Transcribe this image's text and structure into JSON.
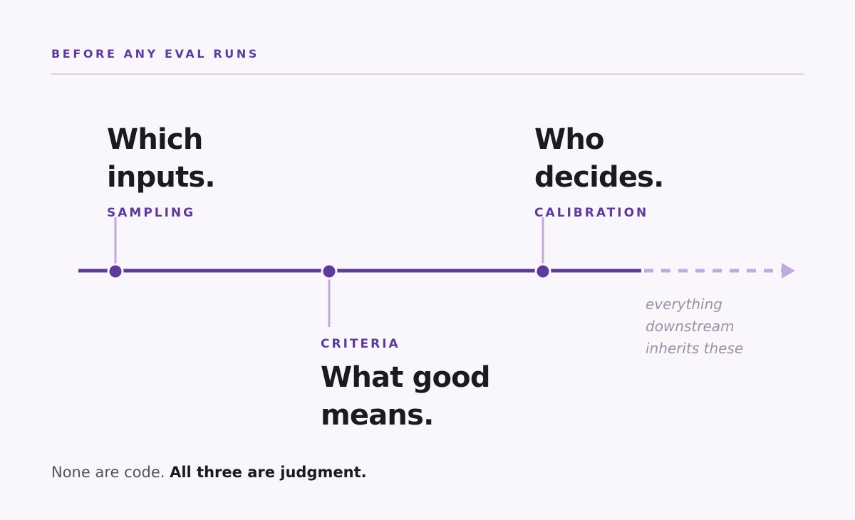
{
  "header": {
    "eyebrow": "BEFORE ANY EVAL RUNS"
  },
  "timeline": {
    "stages": [
      {
        "tag": "SAMPLING",
        "heading_line1": "Which",
        "heading_line2": "inputs."
      },
      {
        "tag": "CRITERIA",
        "heading_line1": "What good",
        "heading_line2": "means."
      },
      {
        "tag": "CALIBRATION",
        "heading_line1": "Who",
        "heading_line2": "decides."
      }
    ],
    "note_line1": "everything",
    "note_line2": "downstream",
    "note_line3": "inherits these"
  },
  "footer": {
    "lead": "None are code.",
    "emphasis": "All three are judgment."
  },
  "colors": {
    "accent": "#5e3a99",
    "accent_light": "#c2a9dd",
    "text": "#1b1b1f",
    "muted": "#9a92a6",
    "background": "#f9f7fb"
  }
}
